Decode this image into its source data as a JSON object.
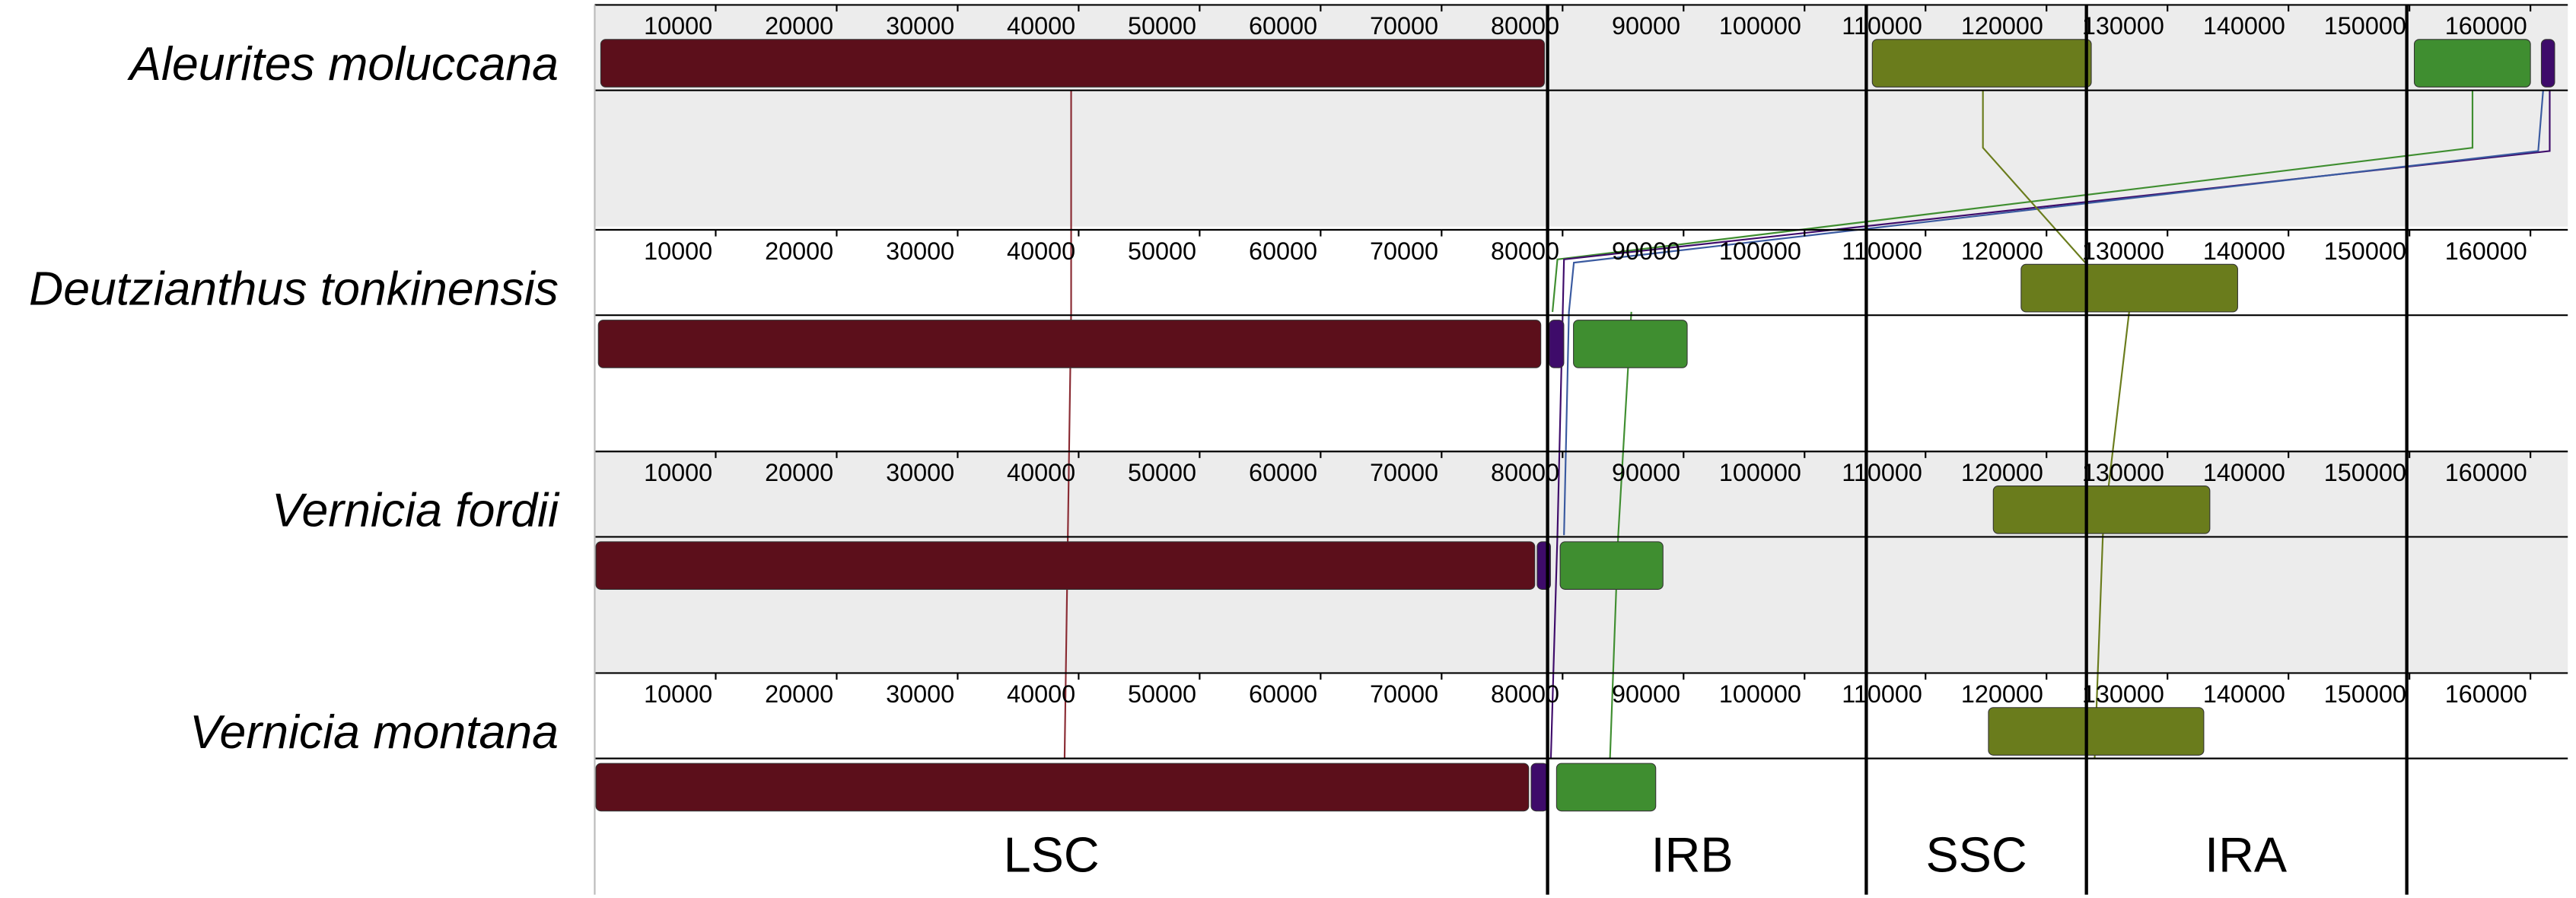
{
  "chart_data": {
    "type": "genome-alignment",
    "xlim": [
      0,
      162000
    ],
    "regions": [
      "LSC",
      "IRB",
      "SSC",
      "IRA"
    ],
    "tracks": [
      {
        "name": "Aleurites moluccana",
        "xticks": [
          10000,
          20000,
          30000,
          40000,
          50000,
          60000,
          70000,
          80000,
          90000,
          100000,
          110000,
          120000,
          130000,
          140000,
          150000,
          160000
        ],
        "blocks": [
          {
            "start": 500,
            "end": 78500,
            "color": "#5c0f1b",
            "strand": "+"
          },
          {
            "start": 105600,
            "end": 123700,
            "color": "#6a7c1c",
            "strand": "+"
          },
          {
            "start": 150400,
            "end": 160000,
            "color": "#3f8e30",
            "strand": "+"
          },
          {
            "start": 160900,
            "end": 162000,
            "color": "#3e0b6a",
            "strand": "+"
          }
        ]
      },
      {
        "name": "Deutzianthus tonkinensis",
        "xticks": [
          10000,
          20000,
          30000,
          40000,
          50000,
          60000,
          70000,
          80000,
          90000,
          100000,
          110000,
          120000,
          130000,
          140000,
          150000,
          160000
        ],
        "blocks": [
          {
            "start": 300,
            "end": 78200,
            "color": "#5c0f1b",
            "strand": "-"
          },
          {
            "start": 78900,
            "end": 80100,
            "color": "#3e0b6a",
            "strand": "-"
          },
          {
            "start": 80900,
            "end": 90300,
            "color": "#3f8e30",
            "strand": "-"
          },
          {
            "start": 117900,
            "end": 135800,
            "color": "#6a7c1c",
            "strand": "+"
          }
        ]
      },
      {
        "name": "Vernicia fordii",
        "xticks": [
          10000,
          20000,
          30000,
          40000,
          50000,
          60000,
          70000,
          80000,
          90000,
          100000,
          110000,
          120000,
          130000,
          140000,
          150000,
          160000
        ],
        "blocks": [
          {
            "start": 100,
            "end": 77700,
            "color": "#5c0f1b",
            "strand": "-"
          },
          {
            "start": 77900,
            "end": 79000,
            "color": "#3e0b6a",
            "strand": "-"
          },
          {
            "start": 79800,
            "end": 88300,
            "color": "#3f8e30",
            "strand": "-"
          },
          {
            "start": 115600,
            "end": 133500,
            "color": "#6a7c1c",
            "strand": "+"
          }
        ]
      },
      {
        "name": "Vernicia montana",
        "xticks": [
          10000,
          20000,
          30000,
          40000,
          50000,
          60000,
          70000,
          80000,
          90000,
          100000,
          110000,
          120000,
          130000,
          140000,
          150000,
          160000
        ],
        "blocks": [
          {
            "start": 100,
            "end": 77200,
            "color": "#5c0f1b",
            "strand": "-"
          },
          {
            "start": 77400,
            "end": 78800,
            "color": "#3e0b6a",
            "strand": "-"
          },
          {
            "start": 79500,
            "end": 87700,
            "color": "#3f8e30",
            "strand": "-"
          },
          {
            "start": 115200,
            "end": 133000,
            "color": "#6a7c1c",
            "strand": "+"
          }
        ]
      }
    ]
  }
}
